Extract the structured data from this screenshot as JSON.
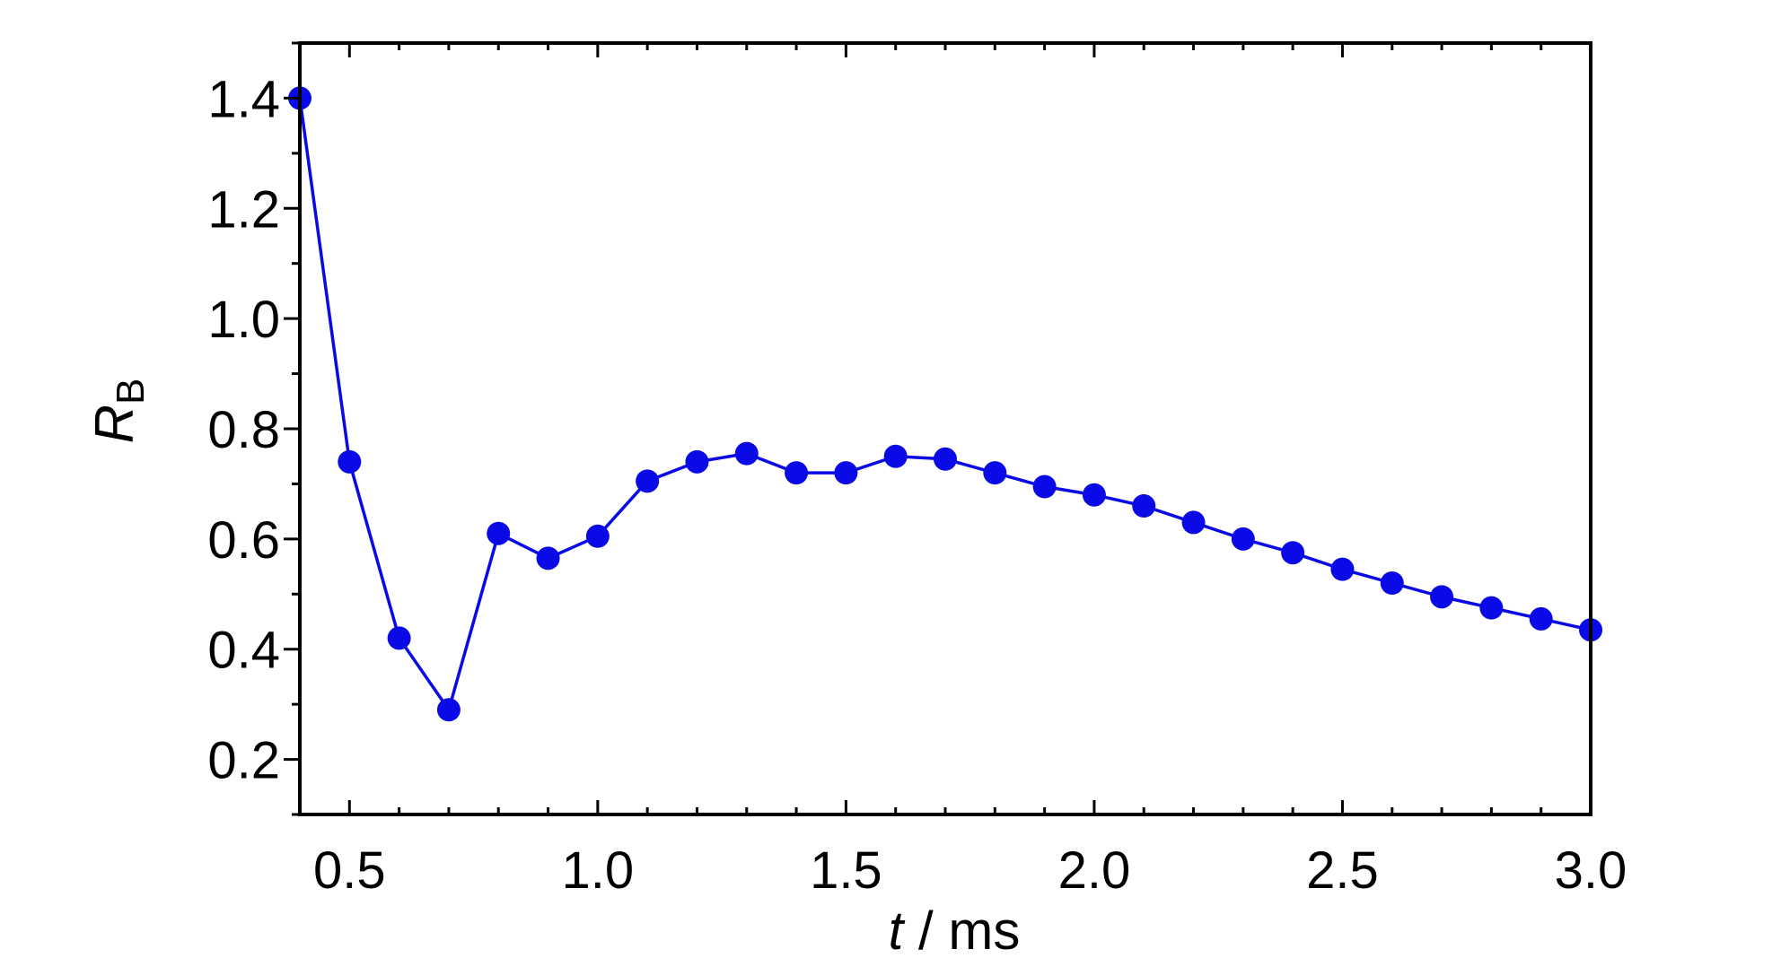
{
  "chart_data": {
    "type": "line",
    "title": "",
    "xlabel": {
      "var": "t",
      "rest": " / ms"
    },
    "ylabel": {
      "var": "R",
      "sub": "B"
    },
    "xlim": [
      0.4,
      3.0
    ],
    "ylim": [
      0.1,
      1.5
    ],
    "x_ticks": [
      0.5,
      1.0,
      1.5,
      2.0,
      2.5,
      3.0
    ],
    "x_tick_labels": [
      "0.5",
      "1.0",
      "1.5",
      "2.0",
      "2.5",
      "3.0"
    ],
    "y_ticks": [
      0.2,
      0.4,
      0.6,
      0.8,
      1.0,
      1.2,
      1.4
    ],
    "y_tick_labels": [
      "0.2",
      "0.4",
      "0.6",
      "0.8",
      "1.0",
      "1.2",
      "1.4"
    ],
    "grid": false,
    "legend": null,
    "colors": {
      "series": "#0a0ae6",
      "axes": "#000000"
    },
    "series": [
      {
        "marker": "circle",
        "x": [
          0.4,
          0.5,
          0.6,
          0.7,
          0.8,
          0.9,
          1.0,
          1.1,
          1.2,
          1.3,
          1.4,
          1.5,
          1.6,
          1.7,
          1.8,
          1.9,
          2.0,
          2.1,
          2.2,
          2.3,
          2.4,
          2.5,
          2.6,
          2.7,
          2.8,
          2.9,
          3.0
        ],
        "y": [
          1.4,
          0.74,
          0.42,
          0.29,
          0.61,
          0.565,
          0.605,
          0.705,
          0.74,
          0.755,
          0.72,
          0.72,
          0.75,
          0.745,
          0.72,
          0.695,
          0.68,
          0.66,
          0.63,
          0.6,
          0.575,
          0.545,
          0.52,
          0.495,
          0.475,
          0.455,
          0.435
        ]
      }
    ]
  }
}
